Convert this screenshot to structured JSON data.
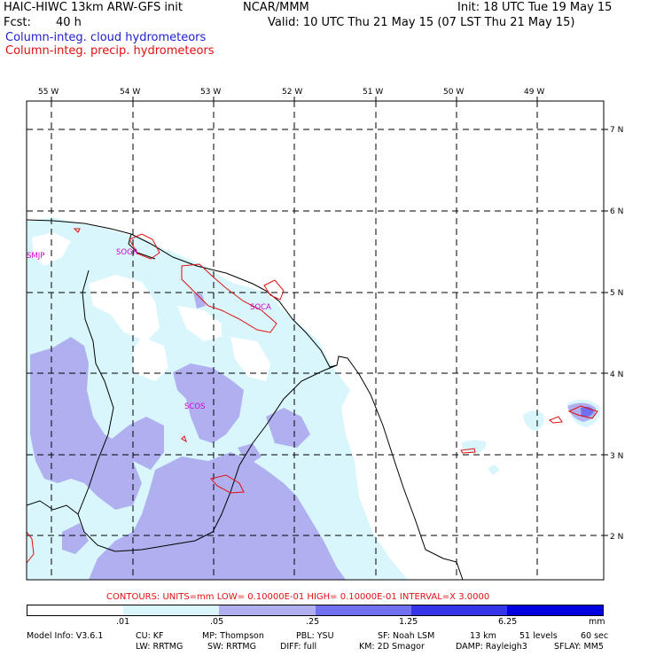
{
  "header": {
    "model": "HAIC-HIWC 13km ARW-GFS init",
    "org": "NCAR/MMM",
    "init": "Init: 18 UTC Tue 19 May 15",
    "fcst_label": "Fcst:",
    "fcst_value": "40 h",
    "valid": "Valid: 10 UTC Thu 21 May 15 (07 LST Thu 21 May 15)",
    "field1": "Column-integ. cloud hydrometeors",
    "field2": "Column-integ. precip. hydrometeors"
  },
  "axes": {
    "lon_labels": [
      "55 W",
      "54 W",
      "53 W",
      "52 W",
      "51 W",
      "50 W",
      "49 W"
    ],
    "lat_labels": [
      "7 N",
      "6 N",
      "5 N",
      "4 N",
      "3 N",
      "2 N"
    ]
  },
  "stations": [
    "SMJP",
    "SOGR",
    "SOCA",
    "SCOS"
  ],
  "contour_info": "CONTOURS:  UNITS=mm  LOW= 0.10000E-01  HIGH= 0.10000E-01  INTERVAL=X  3.0000",
  "colorbar": {
    "labels": [
      ".01",
      ".05",
      ".25",
      "1.25",
      "6.25"
    ],
    "units": "mm",
    "colors": [
      "#ffffff",
      "#d8f6fb",
      "#b0b0f0",
      "#7070f0",
      "#3434e8",
      "#0000e0"
    ]
  },
  "footer": {
    "line1": [
      "Model Info: V3.6.1",
      "CU: KF",
      "MP: Thompson",
      "PBL: YSU",
      "SF: Noah LSM",
      "13 km",
      "51 levels",
      "60 sec"
    ],
    "line2": [
      "LW: RRTMG",
      "SW: RRTMG",
      "DIFF: full",
      "KM: 2D Smagor",
      "DAMP: Rayleigh3",
      "SFLAY: MM5"
    ]
  },
  "colors": {
    "cloud_light": "#d8f6fb",
    "cloud_mid": "#b0b0f0",
    "cloud_dark": "#7070f0",
    "precip_contour": "#e01010",
    "station": "#d000d0"
  }
}
